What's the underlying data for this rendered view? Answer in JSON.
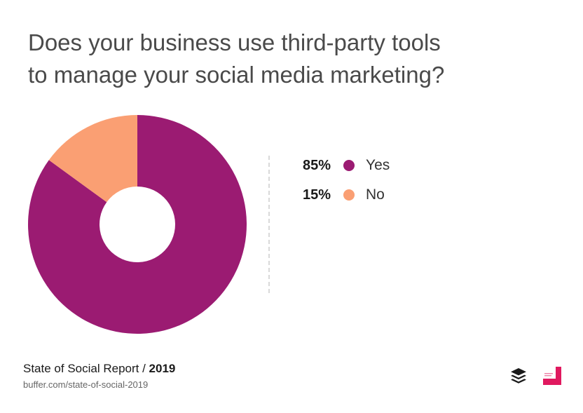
{
  "title": {
    "line1": "Does your business use third-party tools",
    "line2": "to manage your social media marketing?"
  },
  "chart_data": {
    "type": "pie",
    "variant": "donut",
    "categories": [
      "Yes",
      "No"
    ],
    "values": [
      85,
      15
    ],
    "value_labels": [
      "85%",
      "15%"
    ],
    "unit": "%",
    "colors": [
      "#9b1b72",
      "#fa9f73"
    ],
    "legend_position": "right"
  },
  "footer": {
    "report": "State of Social Report / ",
    "year": "2019",
    "url": "buffer.com/state-of-social-2019"
  },
  "icons": {
    "left": "buffer-logo-icon",
    "right": "social-brand-logo-icon"
  }
}
